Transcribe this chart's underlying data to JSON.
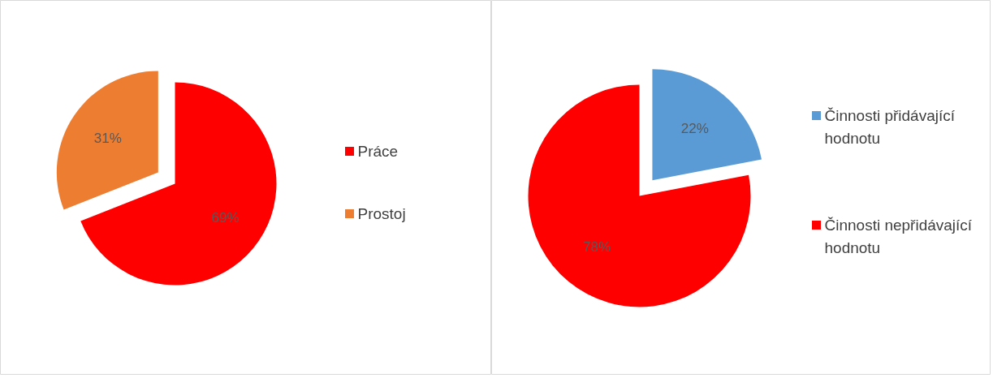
{
  "chart_data": [
    {
      "type": "pie",
      "categories": [
        "Práce",
        "Prostoj"
      ],
      "values": [
        69,
        31
      ],
      "colors": [
        "#ff0000",
        "#ed7d31"
      ],
      "value_labels": [
        "69%",
        "31%"
      ],
      "legend": "right"
    },
    {
      "type": "pie",
      "categories": [
        "Činnosti přidávající hodnotu",
        "Činnosti nepřidávající hodnotu"
      ],
      "values": [
        22,
        78
      ],
      "colors": [
        "#5b9bd5",
        "#ff0000"
      ],
      "value_labels": [
        "22%",
        "78%"
      ],
      "legend": "right"
    }
  ]
}
